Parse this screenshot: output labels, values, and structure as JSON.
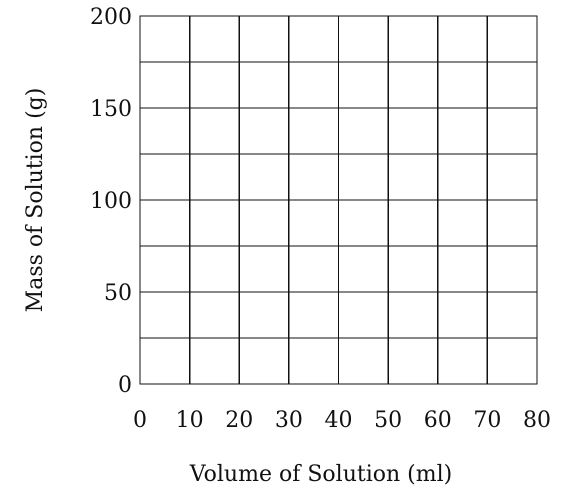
{
  "chart_data": {
    "type": "scatter",
    "title": "",
    "xlabel": "Volume of Solution (ml)",
    "ylabel": "Mass of Solution (g)",
    "xlim": [
      0,
      80
    ],
    "ylim": [
      0,
      200
    ],
    "x_ticks": [
      0,
      10,
      20,
      30,
      40,
      50,
      60,
      70,
      80
    ],
    "y_ticks": [
      0,
      50,
      100,
      150,
      200
    ],
    "x_tick_labels": [
      "0",
      "10",
      "20",
      "30",
      "40",
      "50",
      "60",
      "70",
      "80"
    ],
    "y_tick_labels": [
      "0",
      "50",
      "100",
      "150",
      "200"
    ],
    "x_grid_step": 10,
    "y_grid_step": 25,
    "grid": true,
    "legend": "none",
    "series": []
  }
}
